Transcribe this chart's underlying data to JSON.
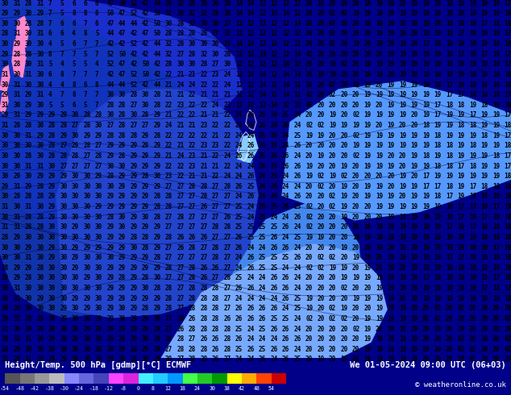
{
  "title_left": "Height/Temp. 500 hPa [gdmp][°C] ECMWF",
  "title_right": "We 01-05-2024 09:00 UTC (06+03)",
  "copyright": "© weatheronline.co.uk",
  "colorbar_colors": [
    "#555555",
    "#777777",
    "#999999",
    "#bbbbbb",
    "#8888ff",
    "#6666dd",
    "#4444bb",
    "#ff44ff",
    "#dd22dd",
    "#44eeff",
    "#22ccff",
    "#0099ff",
    "#44ff44",
    "#22cc22",
    "#009900",
    "#ffff00",
    "#ffaa00",
    "#ff4400",
    "#cc0000"
  ],
  "colorbar_ticks": [
    "-54",
    "-48",
    "-42",
    "-38",
    "-30",
    "-24",
    "-18",
    "-12",
    "-8",
    "0",
    "8",
    "12",
    "18",
    "24",
    "30",
    "38",
    "42",
    "48",
    "54"
  ],
  "figsize": [
    6.34,
    4.9
  ],
  "dpi": 100,
  "map_bg": "#3377ff",
  "dark_navy": "#1133aa",
  "medium_blue": "#2244cc",
  "light_blue": "#5599ff",
  "pale_blue": "#88bbff",
  "pink": "#ff88cc",
  "label_color": "#000000",
  "contour_color": "#000033",
  "bottom_bg": "#000088"
}
